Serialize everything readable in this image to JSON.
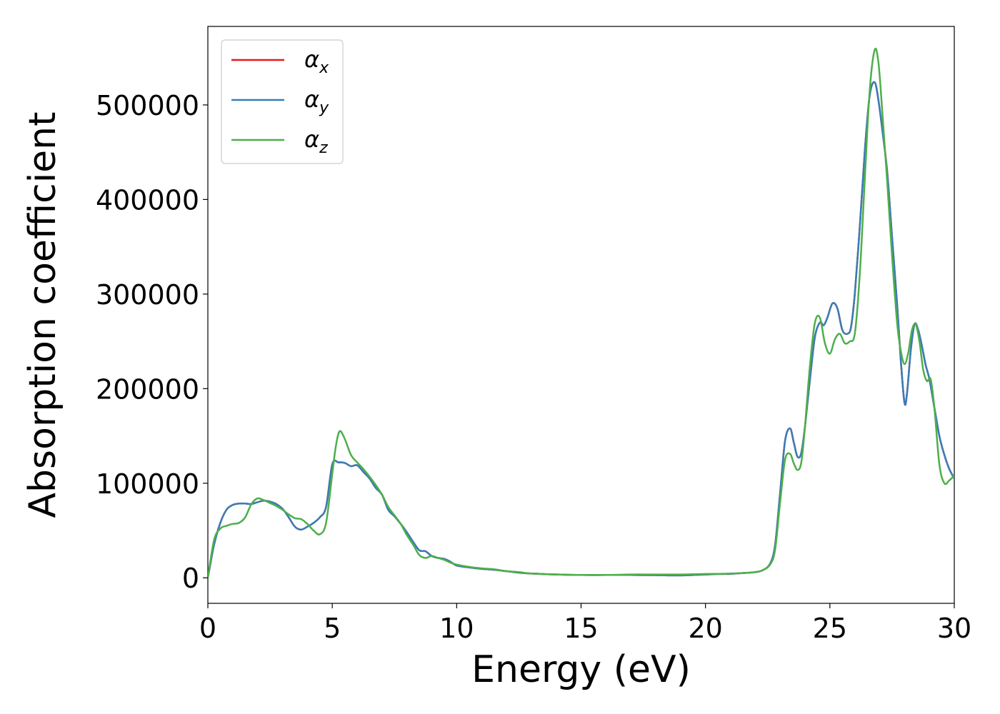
{
  "chart_data": {
    "type": "line",
    "xlabel": "Energy (eV)",
    "ylabel": "Absorption coefficient",
    "xlim": [
      0,
      30
    ],
    "ylim": [
      -27000,
      583000
    ],
    "xticks": [
      0,
      5,
      10,
      15,
      20,
      25,
      30
    ],
    "xtick_labels": [
      "0",
      "5",
      "10",
      "15",
      "20",
      "25",
      "30"
    ],
    "yticks": [
      0,
      100000,
      200000,
      300000,
      400000,
      500000
    ],
    "ytick_labels": [
      "0",
      "100000",
      "200000",
      "300000",
      "400000",
      "500000"
    ],
    "grid": false,
    "legend": {
      "position": "top-left",
      "entries": [
        {
          "symbol": "α",
          "sub": "x",
          "color": "#e41a1c"
        },
        {
          "symbol": "α",
          "sub": "y",
          "color": "#377eb8"
        },
        {
          "symbol": "α",
          "sub": "z",
          "color": "#4daf4a"
        }
      ]
    },
    "series": [
      {
        "key": "alpha_x",
        "color": "#e41a1c",
        "x": [
          0,
          0.25,
          0.5,
          0.75,
          1.0,
          1.25,
          1.5,
          1.75,
          2.0,
          2.25,
          2.5,
          2.75,
          3.0,
          3.25,
          3.5,
          3.75,
          4.0,
          4.25,
          4.5,
          4.75,
          5.0,
          5.25,
          5.5,
          5.75,
          6.0,
          6.25,
          6.5,
          6.75,
          7.0,
          7.25,
          7.5,
          7.75,
          8.0,
          8.25,
          8.5,
          8.75,
          9.0,
          9.25,
          9.5,
          9.75,
          10.0,
          10.5,
          11.0,
          11.5,
          12.0,
          12.5,
          13.0,
          14.0,
          15.0,
          16.0,
          17.0,
          18.0,
          19.0,
          20.0,
          20.5,
          21.0,
          21.5,
          22.0,
          22.3,
          22.6,
          22.8,
          23.0,
          23.2,
          23.4,
          23.55,
          23.7,
          23.85,
          24.0,
          24.2,
          24.4,
          24.6,
          24.75,
          24.9,
          25.1,
          25.3,
          25.5,
          25.7,
          25.85,
          26.0,
          26.2,
          26.4,
          26.6,
          26.8,
          26.95,
          27.1,
          27.3,
          27.5,
          27.7,
          27.85,
          28.0,
          28.1,
          28.25,
          28.4,
          28.55,
          28.7,
          28.85,
          29.0,
          29.2,
          29.4,
          29.6,
          29.8,
          30.0
        ],
        "y": [
          0,
          35000,
          58000,
          72000,
          77000,
          78500,
          78500,
          78000,
          80000,
          81500,
          80500,
          78000,
          73000,
          64000,
          54000,
          51000,
          54000,
          58000,
          64000,
          75000,
          120000,
          122000,
          121500,
          118000,
          119000,
          112000,
          105000,
          95000,
          88000,
          72000,
          65000,
          57000,
          48000,
          38000,
          29000,
          28000,
          23000,
          21000,
          20000,
          17000,
          13000,
          11000,
          9500,
          8500,
          7000,
          5500,
          4500,
          3500,
          3000,
          3000,
          3000,
          2800,
          2500,
          3500,
          4000,
          4200,
          5000,
          6000,
          8000,
          15000,
          35000,
          90000,
          145000,
          158000,
          143000,
          128000,
          132000,
          160000,
          210000,
          255000,
          270000,
          267000,
          275000,
          290000,
          285000,
          262000,
          258000,
          265000,
          300000,
          370000,
          450000,
          510000,
          524000,
          505000,
          475000,
          430000,
          360000,
          290000,
          230000,
          185000,
          195000,
          240000,
          268000,
          262000,
          245000,
          225000,
          210000,
          180000,
          150000,
          130000,
          115000,
          105000
        ]
      },
      {
        "key": "alpha_y",
        "color": "#377eb8",
        "x": [
          0,
          0.25,
          0.5,
          0.75,
          1.0,
          1.25,
          1.5,
          1.75,
          2.0,
          2.25,
          2.5,
          2.75,
          3.0,
          3.25,
          3.5,
          3.75,
          4.0,
          4.25,
          4.5,
          4.75,
          5.0,
          5.25,
          5.5,
          5.75,
          6.0,
          6.25,
          6.5,
          6.75,
          7.0,
          7.25,
          7.5,
          7.75,
          8.0,
          8.25,
          8.5,
          8.75,
          9.0,
          9.25,
          9.5,
          9.75,
          10.0,
          10.5,
          11.0,
          11.5,
          12.0,
          12.5,
          13.0,
          14.0,
          15.0,
          16.0,
          17.0,
          18.0,
          19.0,
          20.0,
          20.5,
          21.0,
          21.5,
          22.0,
          22.3,
          22.6,
          22.8,
          23.0,
          23.2,
          23.4,
          23.55,
          23.7,
          23.85,
          24.0,
          24.2,
          24.4,
          24.6,
          24.75,
          24.9,
          25.1,
          25.3,
          25.5,
          25.7,
          25.85,
          26.0,
          26.2,
          26.4,
          26.6,
          26.8,
          26.95,
          27.1,
          27.3,
          27.5,
          27.7,
          27.85,
          28.0,
          28.1,
          28.25,
          28.4,
          28.55,
          28.7,
          28.85,
          29.0,
          29.2,
          29.4,
          29.6,
          29.8,
          30.0
        ],
        "y": [
          0,
          35000,
          58000,
          72000,
          77000,
          78500,
          78500,
          78000,
          80000,
          81500,
          80500,
          78000,
          73000,
          64000,
          54000,
          51000,
          54000,
          58000,
          64000,
          75000,
          120000,
          122000,
          121500,
          118000,
          119000,
          112000,
          105000,
          95000,
          88000,
          72000,
          65000,
          57000,
          48000,
          38000,
          29000,
          28000,
          23000,
          21000,
          20000,
          17000,
          13000,
          11000,
          9500,
          8500,
          7000,
          5500,
          4500,
          3500,
          3000,
          3000,
          3000,
          2800,
          2500,
          3500,
          4000,
          4200,
          5000,
          6000,
          8000,
          15000,
          35000,
          90000,
          145000,
          158000,
          143000,
          128000,
          132000,
          160000,
          210000,
          255000,
          270000,
          267000,
          275000,
          290000,
          285000,
          262000,
          258000,
          265000,
          300000,
          370000,
          450000,
          510000,
          524000,
          505000,
          475000,
          430000,
          360000,
          290000,
          230000,
          185000,
          195000,
          240000,
          268000,
          262000,
          245000,
          225000,
          210000,
          180000,
          150000,
          130000,
          115000,
          105000
        ]
      },
      {
        "key": "alpha_z",
        "color": "#4daf4a",
        "x": [
          0,
          0.25,
          0.5,
          0.75,
          1.0,
          1.25,
          1.5,
          1.75,
          2.0,
          2.25,
          2.5,
          2.75,
          3.0,
          3.25,
          3.5,
          3.75,
          4.0,
          4.25,
          4.5,
          4.75,
          5.0,
          5.15,
          5.3,
          5.5,
          5.75,
          6.0,
          6.25,
          6.5,
          6.75,
          7.0,
          7.25,
          7.5,
          7.75,
          8.0,
          8.25,
          8.5,
          8.75,
          9.0,
          9.25,
          9.5,
          9.75,
          10.0,
          10.5,
          11.0,
          11.5,
          12.0,
          12.5,
          13.0,
          14.0,
          15.0,
          16.0,
          17.0,
          18.0,
          19.0,
          20.0,
          20.5,
          21.0,
          21.5,
          22.0,
          22.3,
          22.6,
          22.8,
          23.0,
          23.2,
          23.4,
          23.55,
          23.7,
          23.85,
          24.0,
          24.2,
          24.4,
          24.6,
          24.8,
          25.0,
          25.2,
          25.4,
          25.6,
          25.8,
          26.0,
          26.2,
          26.4,
          26.6,
          26.8,
          26.95,
          27.1,
          27.3,
          27.5,
          27.7,
          27.85,
          28.0,
          28.15,
          28.3,
          28.45,
          28.6,
          28.75,
          28.9,
          29.05,
          29.2,
          29.4,
          29.6,
          29.8,
          30.0
        ],
        "y": [
          0,
          40000,
          52000,
          55000,
          57000,
          58000,
          64000,
          78000,
          84000,
          82000,
          79000,
          76000,
          72000,
          67000,
          63000,
          62000,
          57000,
          50000,
          46000,
          58000,
          110000,
          140000,
          155000,
          147000,
          130000,
          122000,
          115000,
          107000,
          98000,
          88000,
          75000,
          66000,
          57000,
          45000,
          35000,
          24000,
          21000,
          23000,
          21000,
          19000,
          16000,
          14000,
          11500,
          10000,
          9000,
          7000,
          6000,
          4500,
          3500,
          3000,
          3000,
          3500,
          3500,
          3500,
          4000,
          4200,
          4500,
          5000,
          6000,
          8000,
          14000,
          30000,
          80000,
          125000,
          131000,
          121000,
          114000,
          122000,
          160000,
          225000,
          270000,
          275000,
          248000,
          237000,
          252000,
          258000,
          248000,
          250000,
          258000,
          320000,
          420000,
          515000,
          558000,
          545000,
          495000,
          420000,
          340000,
          270000,
          240000,
          226000,
          238000,
          262000,
          268000,
          250000,
          220000,
          208000,
          210000,
          180000,
          120000,
          100000,
          103000,
          108000
        ]
      }
    ]
  }
}
